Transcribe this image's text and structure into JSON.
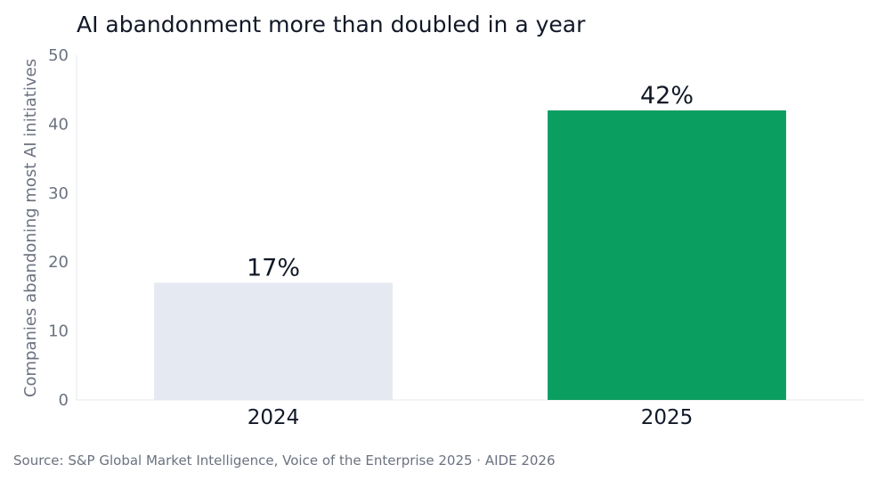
{
  "chart_data": {
    "type": "bar",
    "title": "AI abandonment more than doubled in a year",
    "ylabel": "Companies abandoning most AI initiatives",
    "xlabel": "",
    "categories": [
      "2024",
      "2025"
    ],
    "values": [
      17,
      42
    ],
    "data_labels": [
      "17%",
      "42%"
    ],
    "colors": [
      "#e5eaf2",
      "#0b9e61"
    ],
    "ylim": [
      0,
      50
    ],
    "yticks": [
      0,
      10,
      20,
      30,
      40,
      50
    ],
    "grid": false,
    "legend": "none"
  },
  "footer": {
    "source": "Source: S&P Global Market Intelligence, Voice of the Enterprise 2025  ·  AIDE 2026"
  }
}
